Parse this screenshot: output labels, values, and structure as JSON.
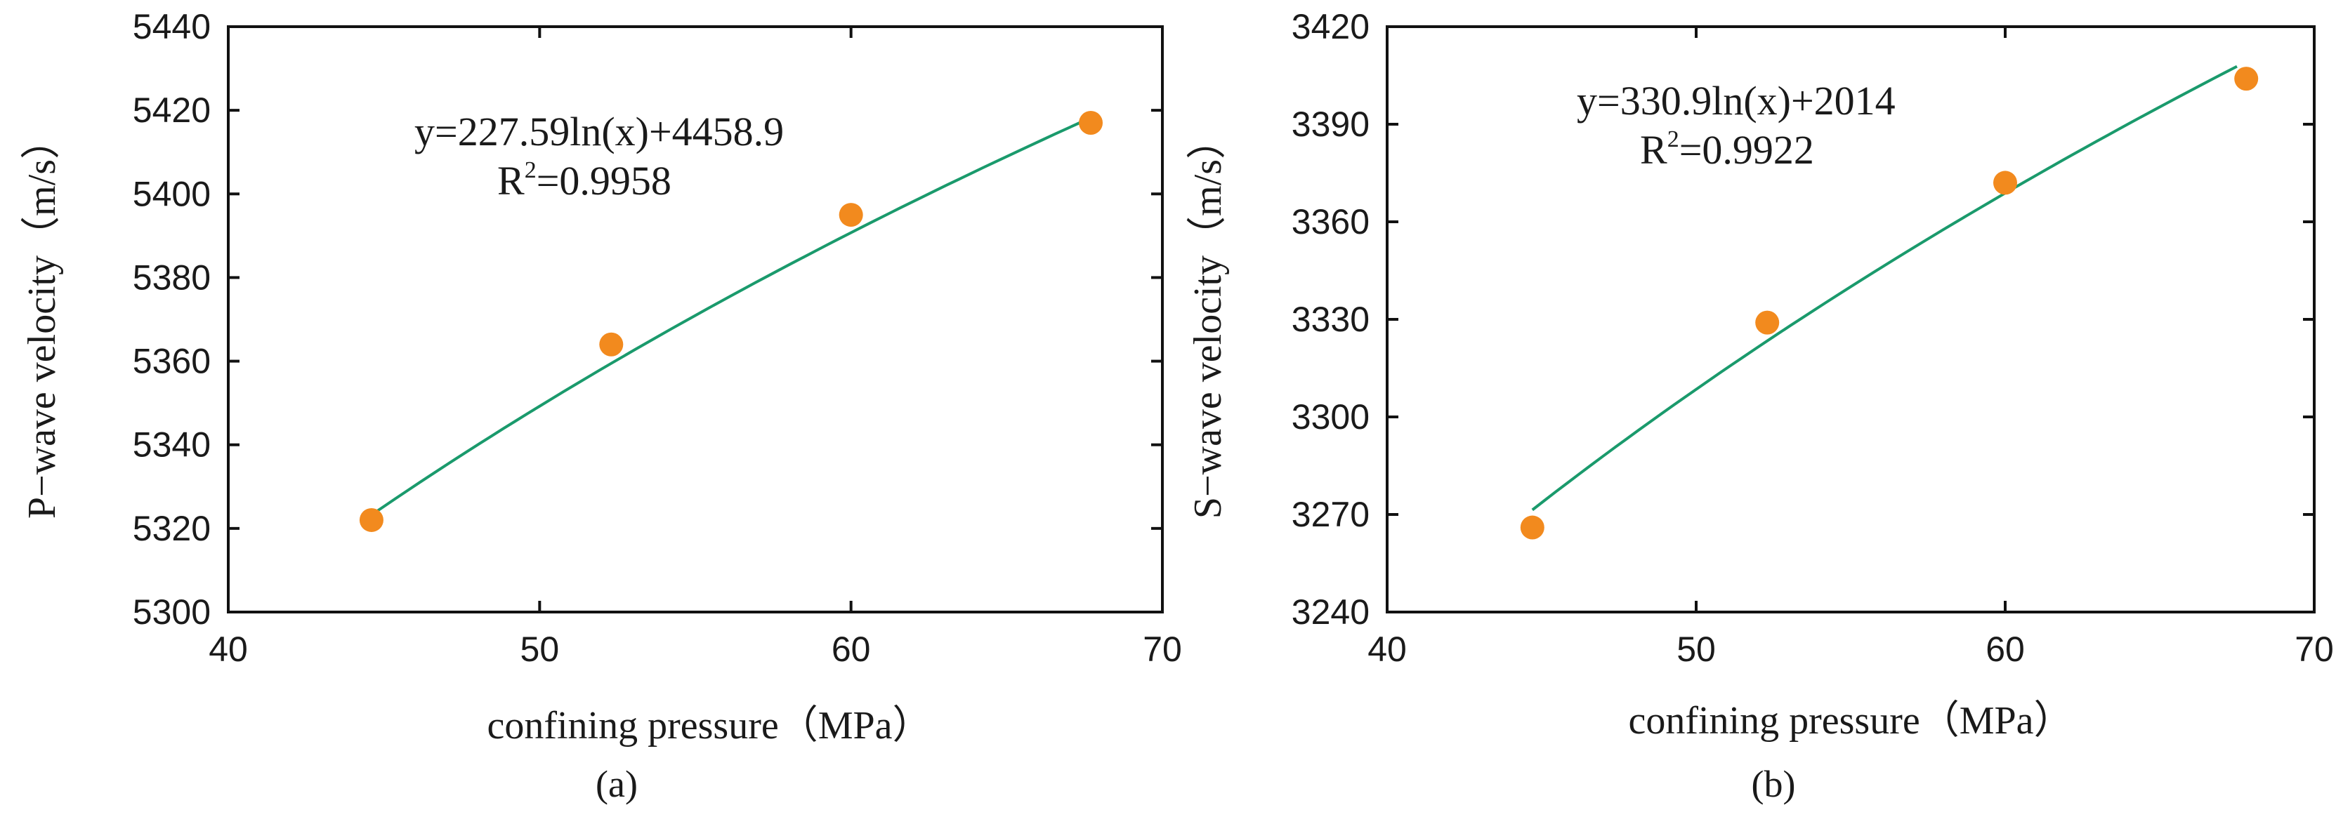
{
  "chart_data": [
    {
      "type": "scatter",
      "panel": "(a)",
      "xlabel": "confining pressure（MPa）",
      "ylabel": "P−wave velocity（m/s）",
      "xlim": [
        40,
        70
      ],
      "ylim": [
        5300,
        5440
      ],
      "xticks": [
        40,
        50,
        60,
        70
      ],
      "yticks": [
        5300,
        5320,
        5340,
        5360,
        5380,
        5400,
        5420,
        5440
      ],
      "xtick_labels": [
        "40",
        "50",
        "60",
        "70"
      ],
      "ytick_labels": [
        "5300",
        "5320",
        "5340",
        "5360",
        "5380",
        "5400",
        "5420",
        "5440"
      ],
      "points": {
        "x": [
          44.6,
          52.3,
          60.0,
          67.7
        ],
        "y": [
          5322,
          5364,
          5395,
          5417
        ]
      },
      "fit": {
        "a": 227.59,
        "b": 4458.9,
        "x_range": [
          44.6,
          67.7
        ]
      },
      "equation": "y=227.59ln(x)+4458.9",
      "r2_prefix": "R",
      "r2_sup": "2",
      "r2_value": "=0.9958",
      "marker_color": "#f28a1e",
      "line_color": "#1a9a6c"
    },
    {
      "type": "scatter",
      "panel": "(b)",
      "xlabel": "confining pressure（MPa）",
      "ylabel": "S−wave velocity（m/s）",
      "xlim": [
        40,
        70
      ],
      "ylim": [
        3240,
        3420
      ],
      "xticks": [
        40,
        50,
        60,
        70
      ],
      "yticks": [
        3240,
        3270,
        3300,
        3330,
        3360,
        3390,
        3420
      ],
      "xtick_labels": [
        "40",
        "50",
        "60",
        "70"
      ],
      "ytick_labels": [
        "3240",
        "3270",
        "3300",
        "3330",
        "3360",
        "3390",
        "3420"
      ],
      "points": {
        "x": [
          44.7,
          52.3,
          60.0,
          67.8
        ],
        "y": [
          3266,
          3329,
          3372,
          3404
        ]
      },
      "fit": {
        "a": 330.9,
        "b": 2014,
        "x_range": [
          44.7,
          67.5
        ]
      },
      "equation": "y=330.9ln(x)+2014",
      "r2_prefix": "R",
      "r2_sup": "2",
      "r2_value": "=0.9922",
      "marker_color": "#f28a1e",
      "line_color": "#1a9a6c"
    }
  ]
}
